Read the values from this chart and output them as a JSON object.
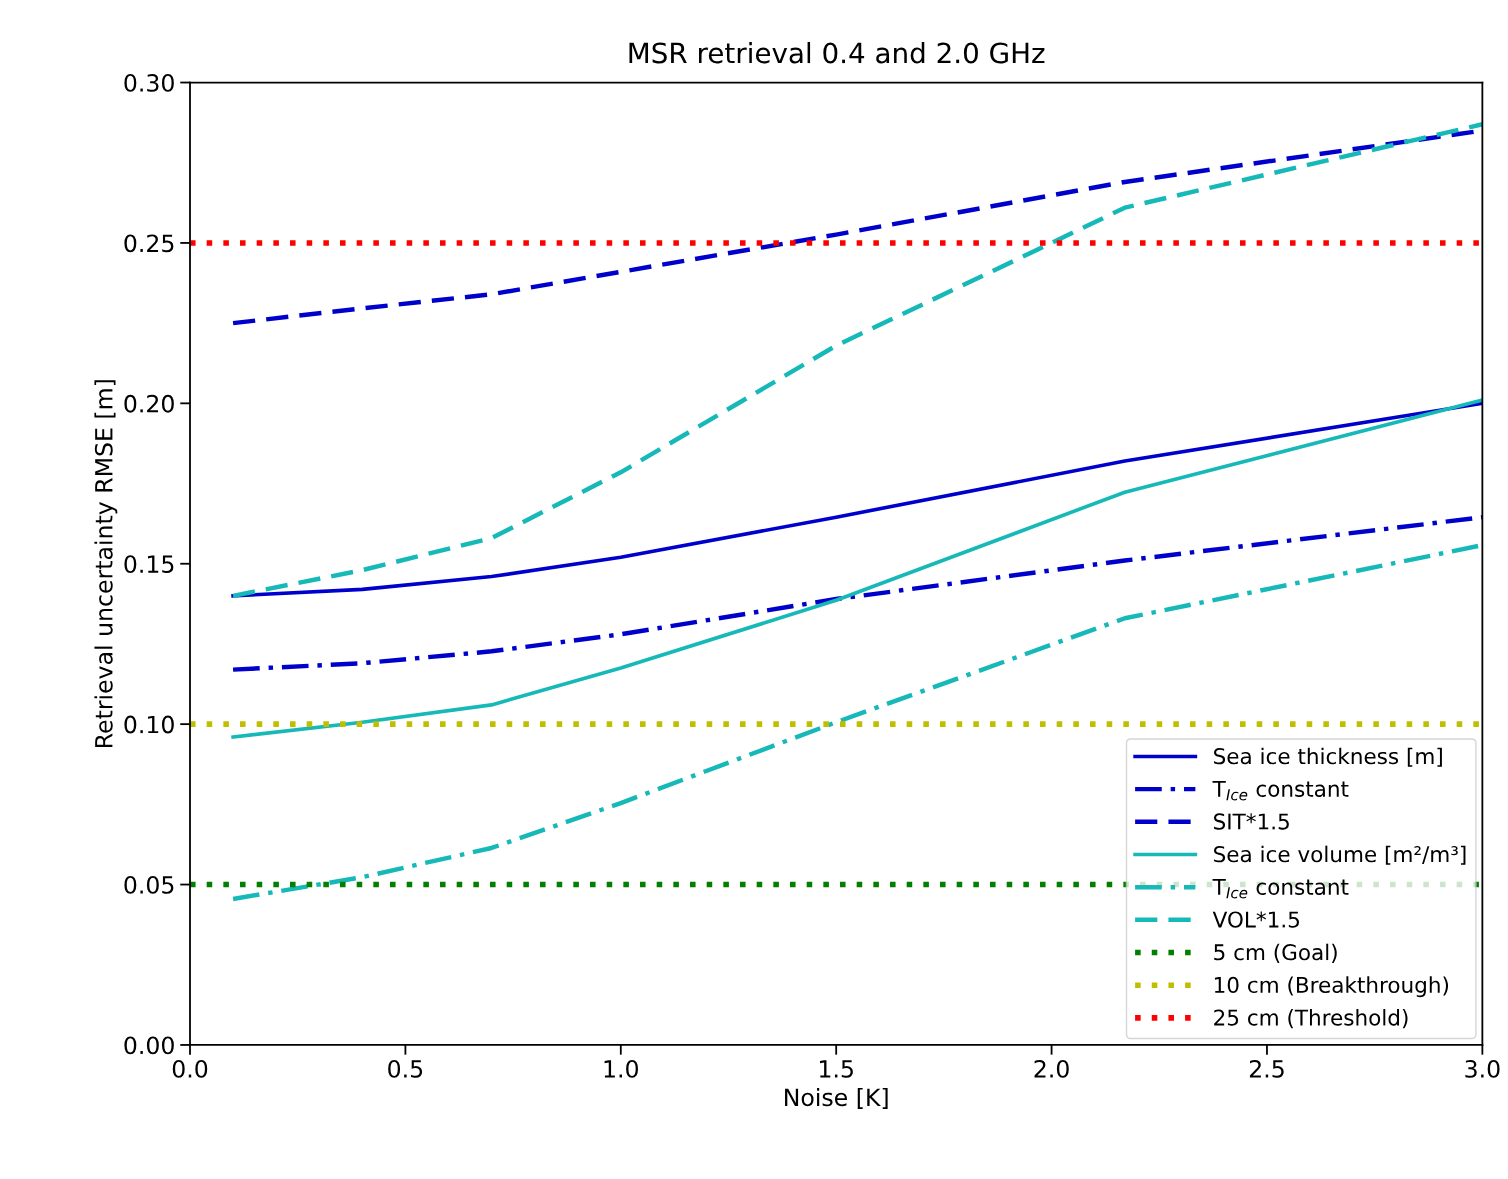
{
  "chart_data": {
    "type": "line",
    "title": "MSR retrieval 0.4 and 2.0 GHz",
    "xlabel": "Noise [K]",
    "ylabel": "Retrieval uncertainty RMSE [m]",
    "xlim": [
      0.0,
      3.0
    ],
    "xticks": [
      {
        "value": 0,
        "label": "0.0"
      },
      0.5,
      {
        "value": 1,
        "label": "1.0"
      },
      1.5,
      {
        "value": 2,
        "label": "2.0"
      },
      2.5,
      {
        "value": 3,
        "label": "3.0"
      }
    ],
    "ylim": [
      0.0,
      0.3
    ],
    "yticks": [
      {
        "value": 0,
        "label": "0.00"
      },
      0.05,
      {
        "value": 0.1,
        "label": "0.10"
      },
      0.15,
      {
        "value": 0.2,
        "label": "0.20"
      },
      0.25,
      {
        "value": 0.3,
        "label": "0.30"
      }
    ],
    "grid": false,
    "legend": "lower right",
    "marker": "none",
    "series": [
      {
        "name": "Sea ice thickness [m]",
        "color": "#0000cd",
        "line_style": "solid",
        "x": [
          0.1,
          0.4,
          0.7,
          1.0,
          1.5,
          2.17,
          3.0
        ],
        "values": [
          0.14,
          0.142,
          0.146,
          0.152,
          0.1645,
          0.182,
          0.2
        ]
      },
      {
        "name": "T$_{Ice}$ constant",
        "color": "#0000cd",
        "line_style": "dashdot",
        "x": [
          0.1,
          0.4,
          0.7,
          1.0,
          1.5,
          2.17,
          3.0
        ],
        "values": [
          0.117,
          0.119,
          0.1227,
          0.128,
          0.139,
          0.151,
          0.1645
        ]
      },
      {
        "name": "SIT*1.5",
        "color": "#0000cd",
        "line_style": "dashed",
        "x": [
          0.1,
          0.4,
          0.7,
          1.0,
          1.5,
          2.17,
          3.0
        ],
        "values": [
          0.225,
          0.2296,
          0.234,
          0.241,
          0.2526,
          0.269,
          0.285
        ]
      },
      {
        "name": "Sea ice volume [m²/m³]",
        "color": "#17b8b8",
        "line_style": "solid",
        "x": [
          0.1,
          0.4,
          0.7,
          1.0,
          1.5,
          2.17,
          3.0
        ],
        "values": [
          0.096,
          0.1006,
          0.106,
          0.1175,
          0.1386,
          0.1723,
          0.201
        ]
      },
      {
        "name": "T$_{Ice}$ constant",
        "color": "#17b8b8",
        "line_style": "dashdot",
        "x": [
          0.1,
          0.4,
          0.7,
          1.0,
          1.5,
          2.17,
          3.0
        ],
        "values": [
          0.0455,
          0.0523,
          0.0614,
          0.0754,
          0.1006,
          0.133,
          0.1558
        ]
      },
      {
        "name": "VOL*1.5",
        "color": "#17b8b8",
        "line_style": "dashed",
        "x": [
          0.1,
          0.4,
          0.7,
          1.0,
          1.5,
          2.0,
          2.17,
          3.0
        ],
        "values": [
          0.14,
          0.148,
          0.158,
          0.1785,
          0.218,
          0.25,
          0.261,
          0.287
        ]
      }
    ],
    "ref_lines": [
      {
        "axis": "y",
        "value": 0.05,
        "label": "5 cm (Goal)",
        "color": "#007f00",
        "line_style": "dotted"
      },
      {
        "axis": "y",
        "value": 0.1,
        "label": "10 cm (Breakthrough)",
        "color": "#bfbf00",
        "line_style": "dotted"
      },
      {
        "axis": "y",
        "value": 0.25,
        "label": "25 cm (Threshold)",
        "color": "#ff0000",
        "line_style": "dotted"
      }
    ]
  }
}
